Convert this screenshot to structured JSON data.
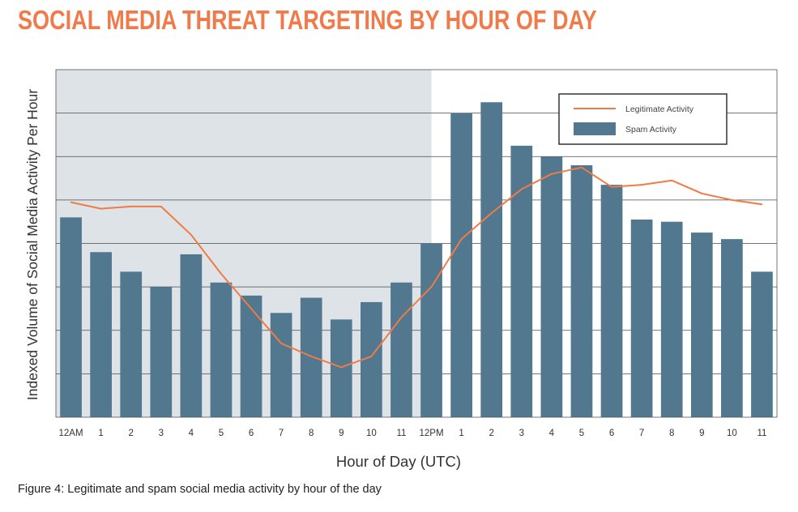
{
  "title": "SOCIAL MEDIA THREAT TARGETING BY HOUR OF DAY",
  "caption": "Figure 4: Legitimate and spam social media activity by hour of the day",
  "colors": {
    "title": "#f07a4a",
    "bar": "#527890",
    "line": "#ef7b45",
    "shade": "#dde3e7",
    "grid": "#4a4a4a"
  },
  "chart_data": {
    "type": "bar",
    "title": "SOCIAL MEDIA THREAT TARGETING BY HOUR OF DAY",
    "xlabel": "Hour of Day (UTC)",
    "ylabel": "Indexed Volume of Social Media Activity Per Hour",
    "categories": [
      "12AM",
      "1",
      "2",
      "3",
      "4",
      "5",
      "6",
      "7",
      "8",
      "9",
      "10",
      "11",
      "12PM",
      "1",
      "2",
      "3",
      "4",
      "5",
      "6",
      "7",
      "8",
      "9",
      "10",
      "11"
    ],
    "ylim": [
      0,
      8
    ],
    "grid": true,
    "shaded_region": "12AM-12PM",
    "legend": {
      "position": "top-right",
      "entries": [
        "Legitimate Activity",
        "Spam Activity"
      ]
    },
    "series": [
      {
        "name": "Spam Activity",
        "type": "bar",
        "values": [
          4.6,
          3.8,
          3.35,
          3.0,
          3.75,
          3.1,
          2.8,
          2.4,
          2.75,
          2.25,
          2.65,
          3.1,
          4.0,
          7.0,
          7.25,
          6.25,
          6.0,
          5.8,
          5.35,
          4.55,
          4.5,
          4.25,
          4.1,
          3.35
        ]
      },
      {
        "name": "Legitimate Activity",
        "type": "line",
        "values": [
          4.95,
          4.8,
          4.85,
          4.85,
          4.2,
          3.3,
          2.5,
          1.7,
          1.4,
          1.15,
          1.4,
          2.3,
          3.0,
          4.1,
          4.7,
          5.25,
          5.6,
          5.75,
          5.3,
          5.35,
          5.45,
          5.15,
          5.0,
          4.9
        ]
      }
    ]
  }
}
